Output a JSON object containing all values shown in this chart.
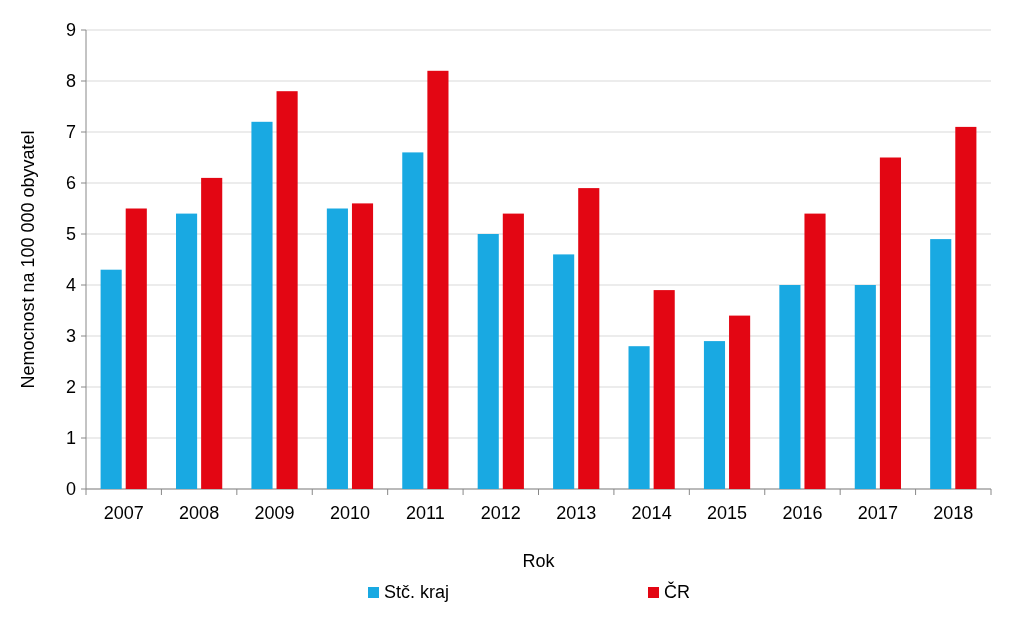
{
  "chart_data": {
    "type": "bar",
    "xlabel": "Rok",
    "ylabel": "Nemocnost na 100 000 obyvatel",
    "categories": [
      "2007",
      "2008",
      "2009",
      "2010",
      "2011",
      "2012",
      "2013",
      "2014",
      "2015",
      "2016",
      "2017",
      "2018"
    ],
    "series": [
      {
        "name": "Stč. kraj",
        "color": "#19a9e2",
        "values": [
          4.3,
          5.4,
          7.2,
          5.5,
          6.6,
          5.0,
          4.6,
          2.8,
          2.9,
          4.0,
          4.0,
          4.9
        ]
      },
      {
        "name": "ČR",
        "color": "#e30613",
        "values": [
          5.5,
          6.1,
          7.8,
          5.6,
          8.2,
          5.4,
          5.9,
          3.9,
          3.4,
          5.4,
          6.5,
          7.1
        ]
      }
    ],
    "ylim": [
      0,
      9
    ],
    "yticks": [
      0,
      1,
      2,
      3,
      4,
      5,
      6,
      7,
      8,
      9
    ],
    "grid": "y",
    "legend": "bottom"
  }
}
